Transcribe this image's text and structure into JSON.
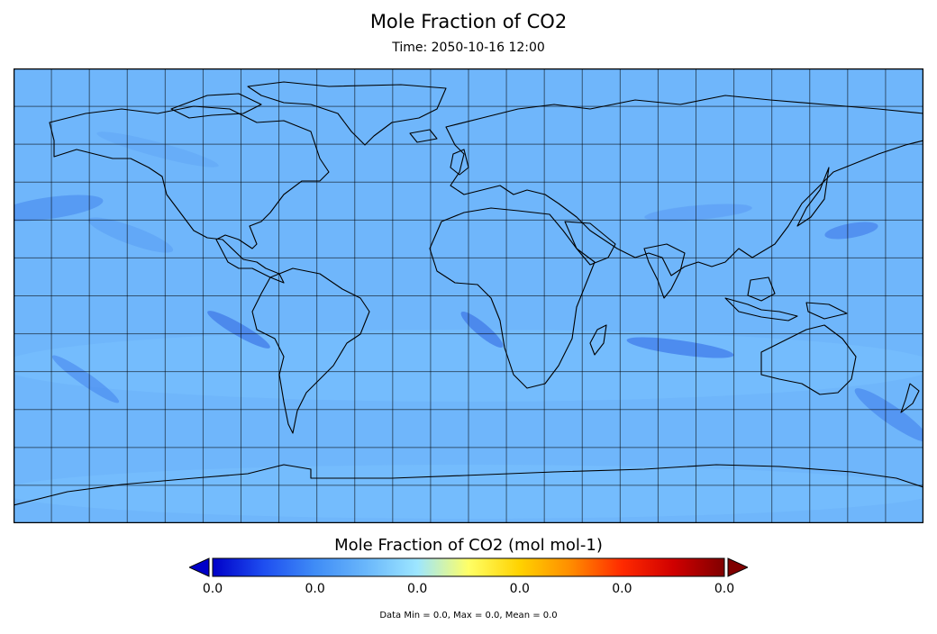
{
  "title": "Mole Fraction of CO2",
  "subtitle": "Time: 2050-10-16 12:00",
  "colorbar": {
    "label": "Mole Fraction of CO2 (mol mol-1)",
    "ticks": [
      "0.0",
      "0.0",
      "0.0",
      "0.0",
      "0.0",
      "0.0"
    ],
    "colors": [
      "#0000c8",
      "#1e4ef0",
      "#3f8cf6",
      "#6ab7fb",
      "#9de6ff",
      "#ffff66",
      "#ffd200",
      "#ff8c00",
      "#ff2a00",
      "#d00000",
      "#800000"
    ],
    "under_color": "#0000c8",
    "over_color": "#800000"
  },
  "stats": "Data Min = 0.0, Max = 0.0, Mean = 0.0",
  "map": {
    "projection": "equirectangular",
    "background_color": "#6fb6fb",
    "grid_lines": true,
    "coastlines": true
  }
}
